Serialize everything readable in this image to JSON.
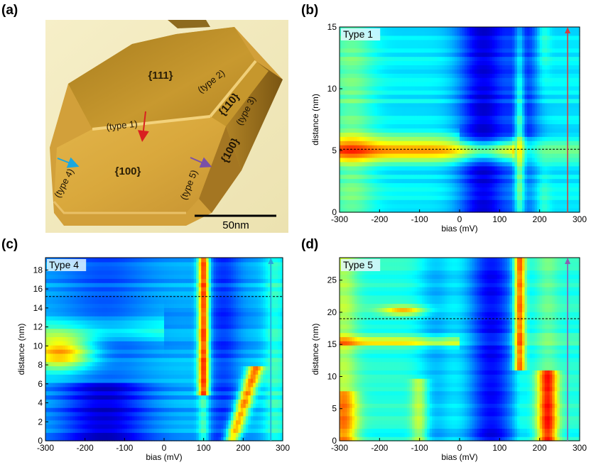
{
  "panels": {
    "a": "(a)",
    "b": "(b)",
    "c": "(c)",
    "d": "(d)"
  },
  "afm": {
    "facets": [
      "{111}",
      "{110}",
      "{100}",
      "{100}"
    ],
    "types": [
      "(type 1)",
      "(type 2)",
      "(type 3)",
      "(type 4)",
      "(type 5)"
    ],
    "scale_label": "50nm",
    "colors": {
      "type1": "#d92020",
      "type4": "#1aa7e0",
      "type5": "#7a50a8",
      "gold": "#c9a03a",
      "background": "#f3ecc2"
    }
  },
  "chart_data": [
    {
      "panel": "b",
      "type": "heatmap",
      "title": "Type 1",
      "xlabel": "bias (mV)",
      "ylabel": "distance (nm)",
      "xlim": [
        -300,
        300
      ],
      "ylim": [
        0,
        15
      ],
      "xticks": [
        "-300",
        "-200",
        "-100",
        "0",
        "100",
        "200",
        "300"
      ],
      "yticks": [
        "0",
        "5",
        "10",
        "15"
      ],
      "arrow_color": "#d34040",
      "dashed_line_distance": 5.1,
      "colormap": "jet"
    },
    {
      "panel": "c",
      "type": "heatmap",
      "title": "Type 4",
      "xlabel": "bias (mV)",
      "ylabel": "distance (nm)",
      "xlim": [
        -300,
        300
      ],
      "ylim": [
        0,
        19.3
      ],
      "xticks": [
        "-300",
        "-200",
        "-100",
        "0",
        "100",
        "200",
        "300"
      ],
      "yticks": [
        "0",
        "2",
        "4",
        "6",
        "8",
        "10",
        "12",
        "14",
        "16",
        "18"
      ],
      "arrow_color": "#2aa3dc",
      "dashed_line_distance": 15.2,
      "colormap": "jet"
    },
    {
      "panel": "d",
      "type": "heatmap",
      "title": "Type 5",
      "xlabel": "bias (mV)",
      "ylabel": "distance (nm)",
      "xlim": [
        -300,
        300
      ],
      "ylim": [
        0,
        28.5
      ],
      "xticks": [
        "-300",
        "-200",
        "-100",
        "0",
        "100",
        "200",
        "300"
      ],
      "yticks": [
        "0",
        "5",
        "10",
        "15",
        "20",
        "25"
      ],
      "arrow_color": "#8a60b0",
      "dashed_line_distance": 19,
      "colormap": "jet"
    }
  ]
}
